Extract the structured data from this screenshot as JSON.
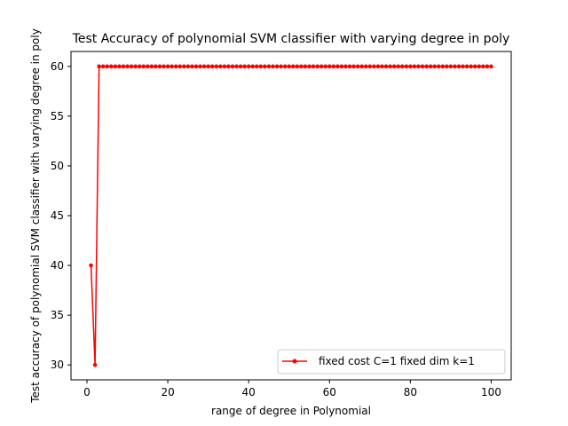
{
  "chart_data": {
    "type": "line",
    "title": "Test Accuracy of polynomial SVM classifier with varying degree in poly",
    "xlabel": "range of degree in Polynomial",
    "ylabel": "Test accuracy of polynomial SVM classifier with varying degree in poly",
    "xlim": [
      -3.95,
      104.95
    ],
    "ylim": [
      28.5,
      61.5
    ],
    "xticks": [
      0,
      20,
      40,
      60,
      80,
      100
    ],
    "yticks": [
      30,
      35,
      40,
      45,
      50,
      55,
      60
    ],
    "grid": false,
    "legend_position": "lower-right",
    "series": [
      {
        "name": "fixed cost C=1 fixed dim k=1",
        "color": "#ff0000",
        "marker": "circle",
        "x": [
          1,
          2,
          3,
          4,
          5,
          6,
          7,
          8,
          9,
          10,
          11,
          12,
          13,
          14,
          15,
          16,
          17,
          18,
          19,
          20,
          21,
          22,
          23,
          24,
          25,
          26,
          27,
          28,
          29,
          30,
          31,
          32,
          33,
          34,
          35,
          36,
          37,
          38,
          39,
          40,
          41,
          42,
          43,
          44,
          45,
          46,
          47,
          48,
          49,
          50,
          51,
          52,
          53,
          54,
          55,
          56,
          57,
          58,
          59,
          60,
          61,
          62,
          63,
          64,
          65,
          66,
          67,
          68,
          69,
          70,
          71,
          72,
          73,
          74,
          75,
          76,
          77,
          78,
          79,
          80,
          81,
          82,
          83,
          84,
          85,
          86,
          87,
          88,
          89,
          90,
          91,
          92,
          93,
          94,
          95,
          96,
          97,
          98,
          99,
          100
        ],
        "y": [
          40,
          30,
          60,
          60,
          60,
          60,
          60,
          60,
          60,
          60,
          60,
          60,
          60,
          60,
          60,
          60,
          60,
          60,
          60,
          60,
          60,
          60,
          60,
          60,
          60,
          60,
          60,
          60,
          60,
          60,
          60,
          60,
          60,
          60,
          60,
          60,
          60,
          60,
          60,
          60,
          60,
          60,
          60,
          60,
          60,
          60,
          60,
          60,
          60,
          60,
          60,
          60,
          60,
          60,
          60,
          60,
          60,
          60,
          60,
          60,
          60,
          60,
          60,
          60,
          60,
          60,
          60,
          60,
          60,
          60,
          60,
          60,
          60,
          60,
          60,
          60,
          60,
          60,
          60,
          60,
          60,
          60,
          60,
          60,
          60,
          60,
          60,
          60,
          60,
          60,
          60,
          60,
          60,
          60,
          60,
          60,
          60,
          60,
          60,
          60
        ]
      }
    ]
  }
}
